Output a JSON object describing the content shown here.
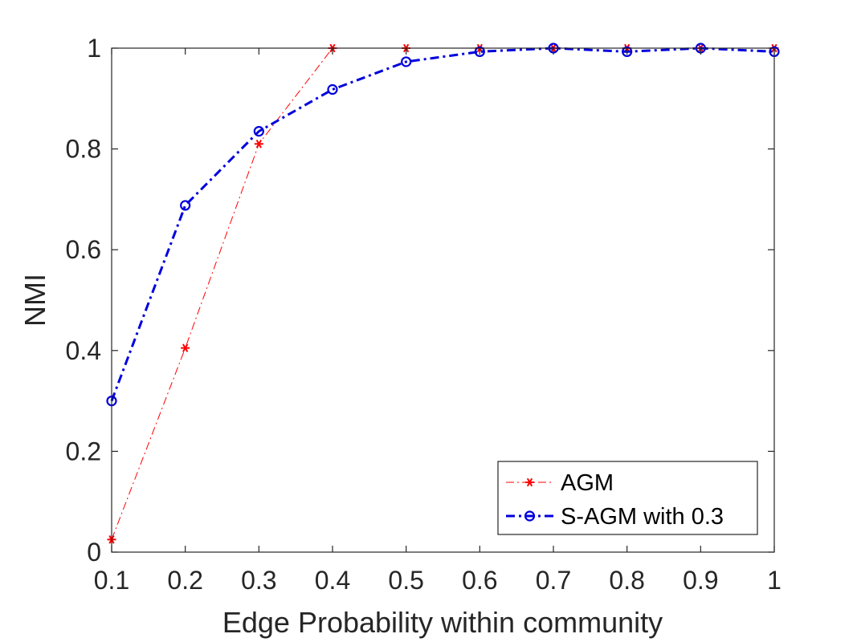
{
  "chart_data": {
    "type": "line",
    "title": "",
    "xlabel": "Edge Probability within community",
    "ylabel": "NMI",
    "xlim": [
      0.1,
      1
    ],
    "ylim": [
      0,
      1
    ],
    "xticks": [
      "0.1",
      "0.2",
      "0.3",
      "0.4",
      "0.5",
      "0.6",
      "0.7",
      "0.8",
      "0.9",
      "1"
    ],
    "yticks": [
      "0",
      "0.2",
      "0.4",
      "0.6",
      "0.8",
      "1"
    ],
    "grid": false,
    "legend_position": "bottom-right",
    "x": [
      0.1,
      0.2,
      0.3,
      0.4,
      0.5,
      0.6,
      0.7,
      0.8,
      0.9,
      1
    ],
    "series": [
      {
        "name": "AGM",
        "color": "#ff0000",
        "marker": "asterisk",
        "line_style": "dash-dot",
        "values": [
          0.025,
          0.405,
          0.81,
          1.0,
          1.0,
          1.0,
          1.0,
          1.0,
          1.0,
          1.0
        ]
      },
      {
        "name": "S-AGM with 0.3",
        "color": "#0000dd",
        "marker": "circle",
        "line_style": "dash-dot",
        "values": [
          0.3,
          0.688,
          0.835,
          0.918,
          0.973,
          0.993,
          1.0,
          0.993,
          1.0,
          0.993
        ]
      }
    ]
  }
}
